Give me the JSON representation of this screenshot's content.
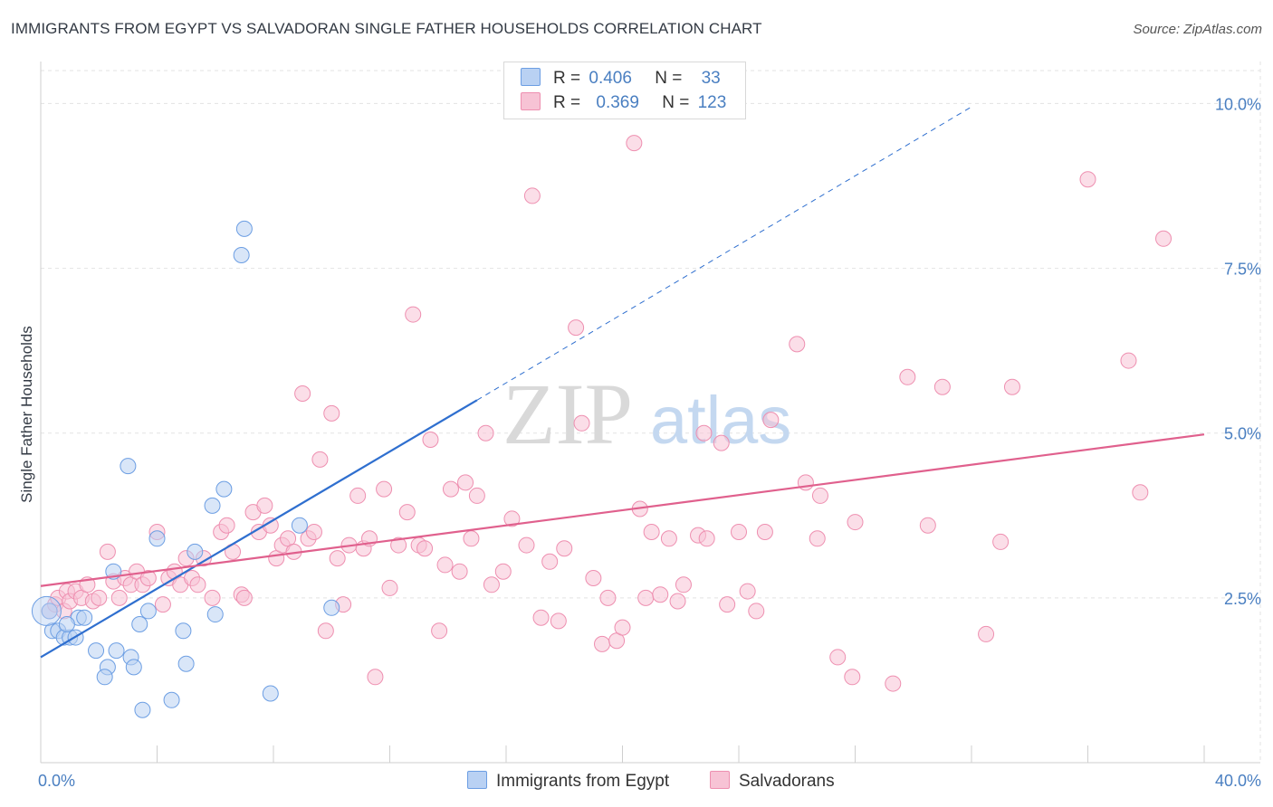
{
  "title": "IMMIGRANTS FROM EGYPT VS SALVADORAN SINGLE FATHER HOUSEHOLDS CORRELATION CHART",
  "source": "Source: ZipAtlas.com",
  "watermark": {
    "zip": "ZIP",
    "atlas": "atlas"
  },
  "legend": {
    "rows": [
      {
        "r_label": "R =",
        "r_value": "0.406",
        "n_label": "N =",
        "n_value": "33"
      },
      {
        "r_label": "R =",
        "r_value": "0.369",
        "n_label": "N =",
        "n_value": "123"
      }
    ]
  },
  "colors": {
    "blue": "#6c9ee3",
    "blue_fill": "#b9d1f3",
    "blue_line": "#2f6fcf",
    "pink": "#ee8fb0",
    "pink_fill": "#f7c3d5",
    "pink_line": "#e0608d",
    "tick": "#4a7fc1"
  },
  "chart_data": {
    "type": "scatter",
    "title": "IMMIGRANTS FROM EGYPT VS SALVADORAN SINGLE FATHER HOUSEHOLDS CORRELATION CHART",
    "xlabel": "",
    "ylabel": "Single Father Households",
    "xlim": [
      0,
      40
    ],
    "ylim": [
      0,
      10.5
    ],
    "x_tick_labels": [
      "0.0%",
      "40.0%"
    ],
    "y_ticks": [
      2.5,
      5.0,
      7.5,
      10.0
    ],
    "y_tick_labels": [
      "2.5%",
      "5.0%",
      "7.5%",
      "10.0%"
    ],
    "grid": true,
    "series": [
      {
        "name": "Immigrants from Egypt",
        "color": "#6c9ee3",
        "trend": {
          "x0": 0,
          "y0": 1.6,
          "x1": 15.0,
          "y1": 5.5,
          "dash_x1": 32.0,
          "dash_y1": 9.95
        },
        "points": [
          [
            0.3,
            2.3
          ],
          [
            0.4,
            2.0
          ],
          [
            0.6,
            2.0
          ],
          [
            0.8,
            1.9
          ],
          [
            1.0,
            1.9
          ],
          [
            1.3,
            2.2
          ],
          [
            1.5,
            2.2
          ],
          [
            1.9,
            1.7
          ],
          [
            2.3,
            1.45
          ],
          [
            2.2,
            1.3
          ],
          [
            2.6,
            1.7
          ],
          [
            3.1,
            1.6
          ],
          [
            3.2,
            1.45
          ],
          [
            3.4,
            2.1
          ],
          [
            2.5,
            2.9
          ],
          [
            3.0,
            4.5
          ],
          [
            3.7,
            2.3
          ],
          [
            3.5,
            0.8
          ],
          [
            4.0,
            3.4
          ],
          [
            4.5,
            0.95
          ],
          [
            4.9,
            2.0
          ],
          [
            5.0,
            1.5
          ],
          [
            5.3,
            3.2
          ],
          [
            5.9,
            3.9
          ],
          [
            6.0,
            2.25
          ],
          [
            6.3,
            4.15
          ],
          [
            6.9,
            7.7
          ],
          [
            7.0,
            8.1
          ],
          [
            7.9,
            1.05
          ],
          [
            8.9,
            3.6
          ],
          [
            10.0,
            2.35
          ],
          [
            1.2,
            1.9
          ],
          [
            0.9,
            2.1
          ]
        ]
      },
      {
        "name": "Salvadorans",
        "color": "#ee8fb0",
        "trend": {
          "x0": 0,
          "y0": 2.68,
          "x1": 40,
          "y1": 4.98
        },
        "points": [
          [
            0.3,
            2.3
          ],
          [
            0.5,
            2.4
          ],
          [
            0.6,
            2.5
          ],
          [
            0.8,
            2.3
          ],
          [
            0.9,
            2.6
          ],
          [
            1.0,
            2.45
          ],
          [
            1.2,
            2.6
          ],
          [
            1.4,
            2.5
          ],
          [
            1.6,
            2.7
          ],
          [
            1.8,
            2.45
          ],
          [
            2.0,
            2.5
          ],
          [
            2.3,
            3.2
          ],
          [
            2.5,
            2.75
          ],
          [
            2.7,
            2.5
          ],
          [
            2.9,
            2.8
          ],
          [
            3.1,
            2.7
          ],
          [
            3.3,
            2.9
          ],
          [
            3.5,
            2.7
          ],
          [
            3.7,
            2.8
          ],
          [
            4.0,
            3.5
          ],
          [
            4.2,
            2.4
          ],
          [
            4.4,
            2.8
          ],
          [
            4.6,
            2.9
          ],
          [
            4.8,
            2.7
          ],
          [
            5.0,
            3.1
          ],
          [
            5.2,
            2.8
          ],
          [
            5.4,
            2.7
          ],
          [
            5.6,
            3.1
          ],
          [
            5.9,
            2.5
          ],
          [
            6.2,
            3.5
          ],
          [
            6.4,
            3.6
          ],
          [
            6.6,
            3.2
          ],
          [
            6.9,
            2.55
          ],
          [
            7.0,
            2.5
          ],
          [
            7.3,
            3.8
          ],
          [
            7.5,
            3.5
          ],
          [
            7.7,
            3.9
          ],
          [
            7.9,
            3.6
          ],
          [
            8.1,
            3.1
          ],
          [
            8.3,
            3.3
          ],
          [
            8.5,
            3.4
          ],
          [
            8.7,
            3.2
          ],
          [
            9.0,
            5.6
          ],
          [
            9.2,
            3.4
          ],
          [
            9.4,
            3.5
          ],
          [
            9.6,
            4.6
          ],
          [
            9.8,
            2.0
          ],
          [
            10.0,
            5.3
          ],
          [
            10.2,
            3.1
          ],
          [
            10.4,
            2.4
          ],
          [
            10.6,
            3.3
          ],
          [
            10.9,
            4.05
          ],
          [
            11.1,
            3.25
          ],
          [
            11.3,
            3.4
          ],
          [
            11.5,
            1.3
          ],
          [
            11.8,
            4.15
          ],
          [
            12.0,
            2.65
          ],
          [
            12.3,
            3.3
          ],
          [
            12.6,
            3.8
          ],
          [
            12.8,
            6.8
          ],
          [
            13.0,
            3.3
          ],
          [
            13.2,
            3.25
          ],
          [
            13.4,
            4.9
          ],
          [
            13.7,
            2.0
          ],
          [
            13.9,
            3.0
          ],
          [
            14.1,
            4.15
          ],
          [
            14.4,
            2.9
          ],
          [
            14.6,
            4.25
          ],
          [
            14.8,
            3.4
          ],
          [
            15.0,
            4.05
          ],
          [
            15.3,
            5.0
          ],
          [
            15.5,
            2.7
          ],
          [
            15.9,
            2.9
          ],
          [
            16.2,
            3.7
          ],
          [
            16.7,
            3.3
          ],
          [
            16.9,
            8.6
          ],
          [
            17.2,
            2.2
          ],
          [
            17.5,
            3.05
          ],
          [
            17.8,
            2.15
          ],
          [
            18.0,
            3.25
          ],
          [
            18.4,
            6.6
          ],
          [
            18.6,
            5.15
          ],
          [
            19.0,
            2.8
          ],
          [
            19.3,
            1.8
          ],
          [
            19.5,
            2.5
          ],
          [
            19.8,
            1.85
          ],
          [
            20.0,
            2.05
          ],
          [
            20.4,
            9.4
          ],
          [
            20.6,
            3.85
          ],
          [
            20.8,
            2.5
          ],
          [
            21.0,
            3.5
          ],
          [
            21.3,
            2.55
          ],
          [
            21.6,
            3.4
          ],
          [
            21.9,
            2.45
          ],
          [
            22.1,
            2.7
          ],
          [
            22.6,
            3.45
          ],
          [
            22.8,
            5.0
          ],
          [
            22.9,
            3.4
          ],
          [
            23.4,
            4.85
          ],
          [
            23.6,
            2.4
          ],
          [
            24.0,
            3.5
          ],
          [
            24.3,
            2.6
          ],
          [
            24.6,
            2.3
          ],
          [
            24.9,
            3.5
          ],
          [
            25.1,
            5.2
          ],
          [
            26.0,
            6.35
          ],
          [
            26.3,
            4.25
          ],
          [
            26.7,
            3.4
          ],
          [
            26.8,
            4.05
          ],
          [
            27.4,
            1.6
          ],
          [
            27.9,
            1.3
          ],
          [
            28.0,
            3.65
          ],
          [
            29.3,
            1.2
          ],
          [
            29.8,
            5.85
          ],
          [
            30.5,
            3.6
          ],
          [
            31.0,
            5.7
          ],
          [
            32.5,
            1.95
          ],
          [
            33.0,
            3.35
          ],
          [
            33.4,
            5.7
          ],
          [
            36.0,
            8.85
          ],
          [
            37.4,
            6.1
          ],
          [
            37.8,
            4.1
          ],
          [
            38.6,
            7.95
          ]
        ]
      }
    ]
  },
  "bottom_legend": [
    {
      "label": "Immigrants from Egypt"
    },
    {
      "label": "Salvadorans"
    }
  ]
}
